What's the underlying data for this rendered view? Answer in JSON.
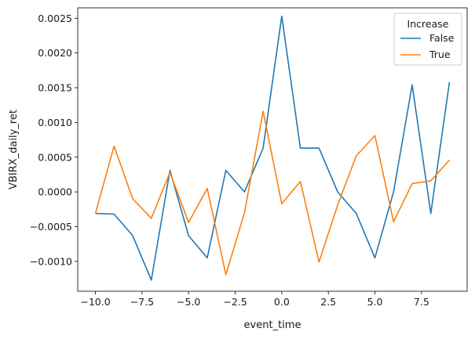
{
  "chart_data": {
    "type": "line",
    "title": "",
    "xlabel": "event_time",
    "ylabel": "VBIRX_daily_ret",
    "xlim": [
      -10.95,
      9.95
    ],
    "ylim": [
      -0.00143,
      0.00265
    ],
    "x_ticks": [
      -10.0,
      -7.5,
      -5.0,
      -2.5,
      0.0,
      2.5,
      5.0,
      7.5
    ],
    "x_tick_labels": [
      "−10.0",
      "−7.5",
      "−5.0",
      "−2.5",
      "0.0",
      "2.5",
      "5.0",
      "7.5"
    ],
    "y_ticks": [
      -0.001,
      -0.0005,
      0.0,
      0.0005,
      0.001,
      0.0015,
      0.002,
      0.0025
    ],
    "y_tick_labels": [
      "−0.0010",
      "−0.0005",
      "0.0000",
      "0.0005",
      "0.0010",
      "0.0015",
      "0.0020",
      "0.0025"
    ],
    "grid": false,
    "legend": {
      "title": "Increase",
      "placement": "top-right"
    },
    "x": [
      -10,
      -9,
      -8,
      -7,
      -6,
      -5,
      -4,
      -3,
      -2,
      -1,
      0,
      1,
      2,
      3,
      4,
      5,
      6,
      7,
      8,
      9
    ],
    "series": [
      {
        "name": "False",
        "color": "#1f77b4",
        "values": [
          -0.00031,
          -0.00032,
          -0.00063,
          -0.00127,
          0.00031,
          -0.00063,
          -0.00095,
          0.00031,
          0.0,
          0.00063,
          0.00253,
          0.00063,
          0.00063,
          0.0,
          -0.00031,
          -0.00095,
          0.0,
          0.00154,
          -0.00031,
          0.00158
        ]
      },
      {
        "name": "True",
        "color": "#ff7f0e",
        "values": [
          -0.00031,
          0.00066,
          -0.0001,
          -0.00038,
          0.00028,
          -0.00044,
          5e-05,
          -0.00119,
          -0.0003,
          0.00116,
          -0.00017,
          0.00015,
          -0.00101,
          -0.00019,
          0.00052,
          0.00081,
          -0.00043,
          0.00012,
          0.00016,
          0.00046
        ]
      }
    ]
  }
}
